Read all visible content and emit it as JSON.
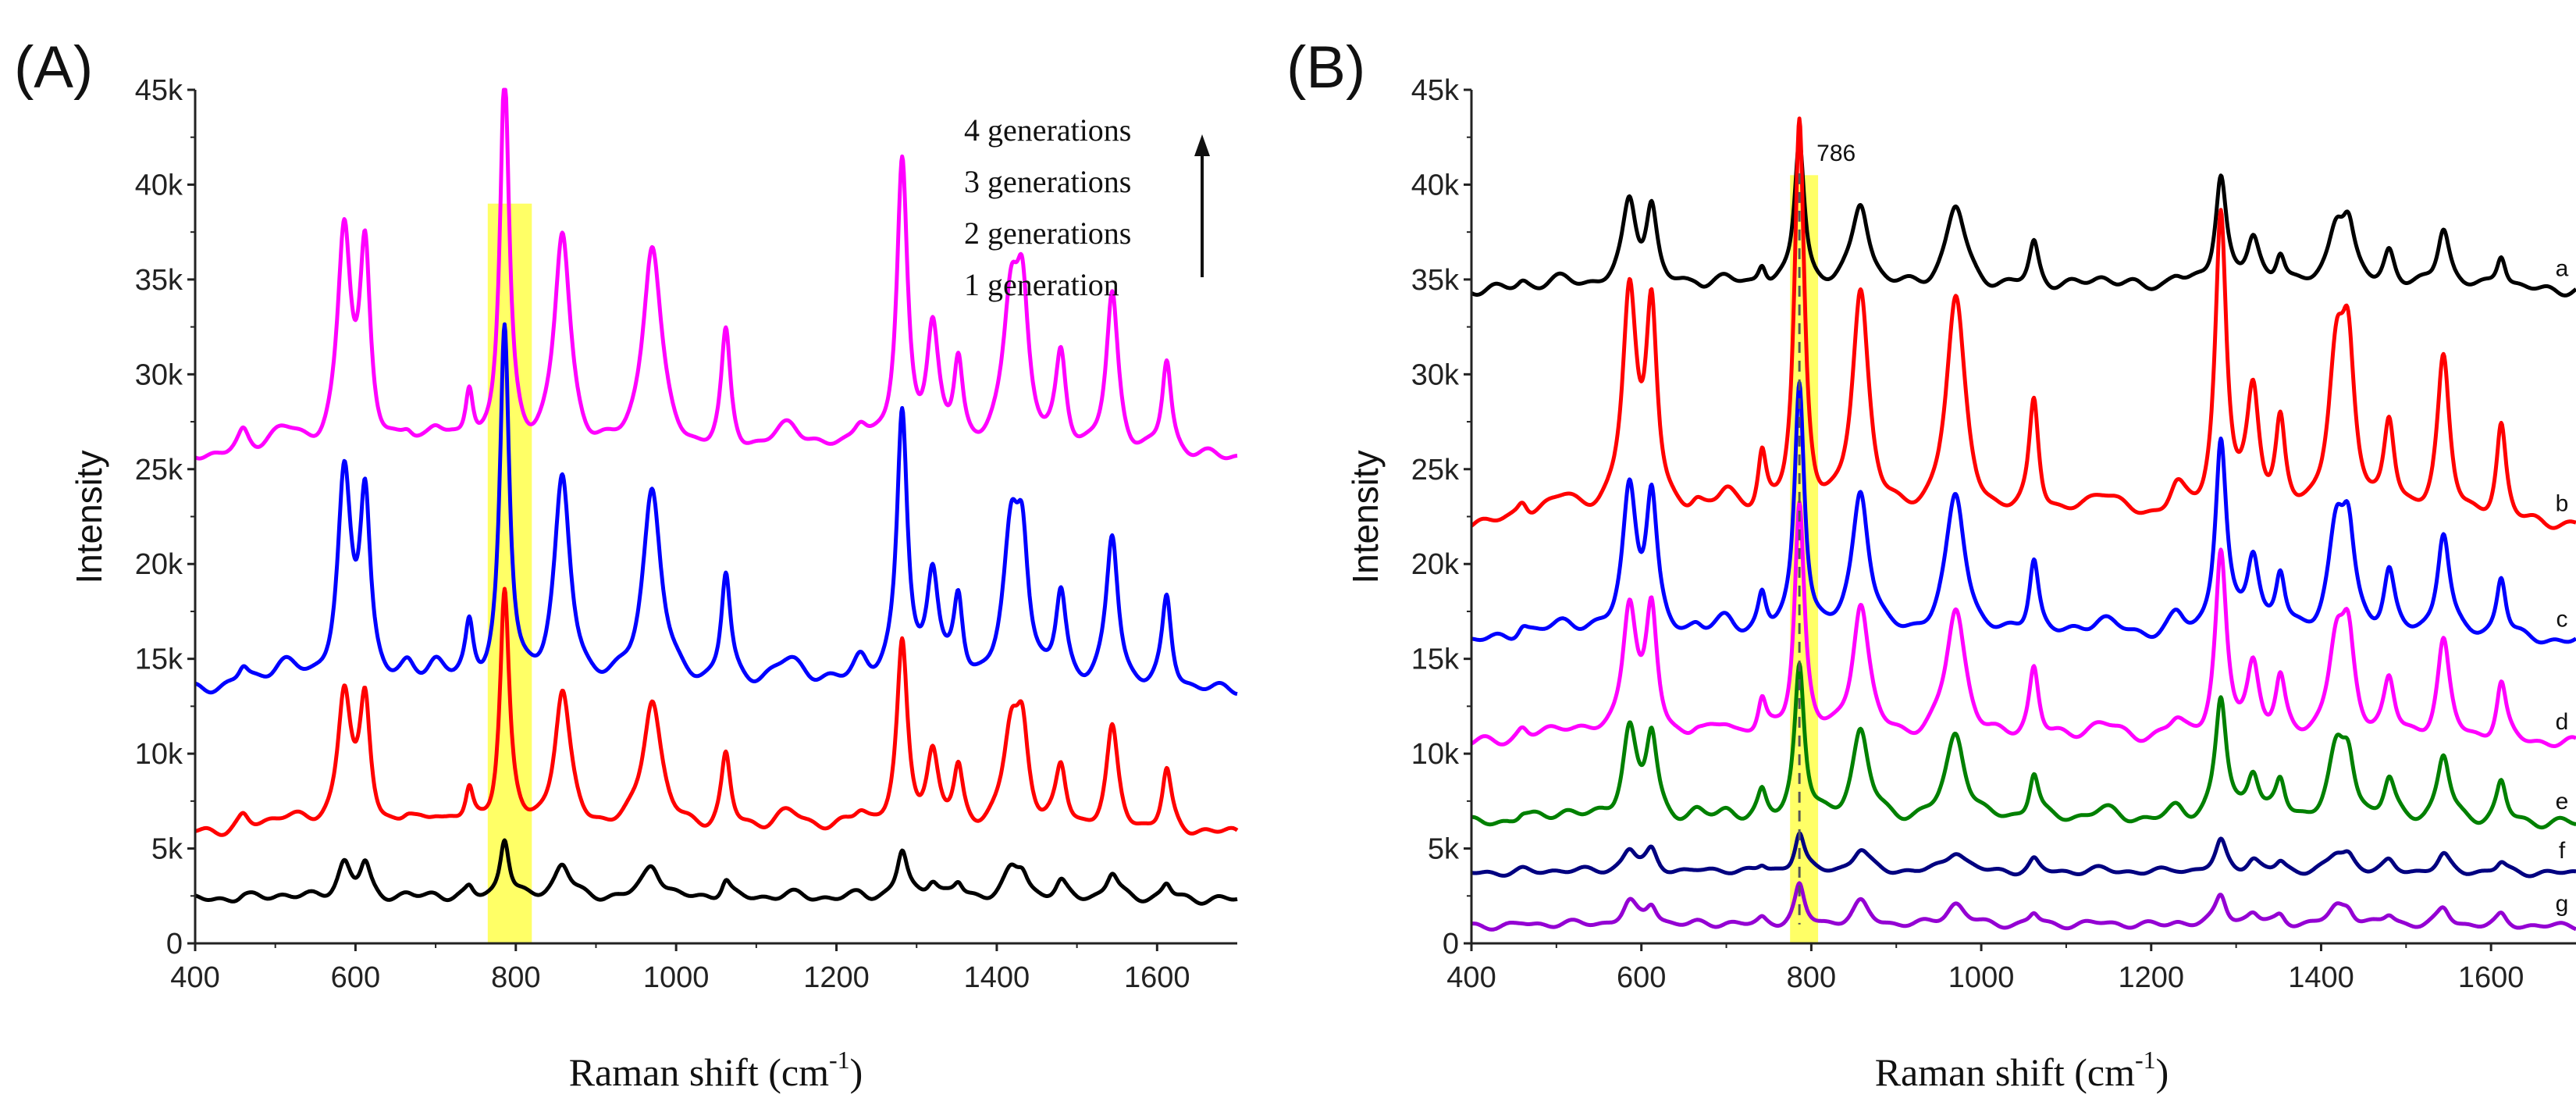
{
  "chart_data": [
    {
      "type": "line",
      "panel_label": "(A)",
      "title": "",
      "xlabel": "Raman shift (cm",
      "xlabel_sup": "-1",
      "xlabel_end": ")",
      "ylabel": "Intensity",
      "xlim": [
        400,
        1700
      ],
      "ylim": [
        0,
        45000
      ],
      "xticks": [
        400,
        600,
        800,
        1000,
        1200,
        1400,
        1600
      ],
      "yticks": [
        0,
        5000,
        10000,
        15000,
        20000,
        25000,
        30000,
        35000,
        40000,
        45000
      ],
      "ytick_labels": [
        "0",
        "5k",
        "10k",
        "15k",
        "20k",
        "25k",
        "30k",
        "35k",
        "40k",
        "45k"
      ],
      "highlight": {
        "x_from": 765,
        "x_to": 820,
        "y_to": 39000,
        "color": "#ffff66"
      },
      "legend": [
        "4 generations",
        "3 generations",
        "2 generations",
        "1 generation"
      ],
      "legend_arrow": true,
      "series": [
        {
          "name": "1 generation",
          "color": "#000000",
          "baseline": 2300,
          "scale": 0.062,
          "noise": 250
        },
        {
          "name": "2 generations",
          "color": "#ff0000",
          "baseline": 5800,
          "scale": 0.24,
          "noise": 300
        },
        {
          "name": "3 generations",
          "color": "#0000ff",
          "baseline": 13300,
          "scale": 0.36,
          "noise": 300
        },
        {
          "name": "4 generations",
          "color": "#ff00ff",
          "baseline": 25600,
          "scale": 0.38,
          "noise": 300
        }
      ]
    },
    {
      "type": "line",
      "panel_label": "(B)",
      "title": "",
      "xlabel": "Raman shift (cm",
      "xlabel_sup": "-1",
      "xlabel_end": ")",
      "ylabel": "Intensity",
      "xlim": [
        400,
        1700
      ],
      "ylim": [
        0,
        45000
      ],
      "xticks": [
        400,
        600,
        800,
        1000,
        1200,
        1400,
        1600
      ],
      "yticks": [
        0,
        5000,
        10000,
        15000,
        20000,
        25000,
        30000,
        35000,
        40000,
        45000
      ],
      "ytick_labels": [
        "0",
        "5k",
        "10k",
        "15k",
        "20k",
        "25k",
        "30k",
        "35k",
        "40k",
        "45k"
      ],
      "highlight": {
        "x_from": 775,
        "x_to": 808,
        "y_to": 40500,
        "color": "#ffff66"
      },
      "annotation": {
        "text": "786",
        "x": 786
      },
      "series": [
        {
          "name": "a",
          "color": "#000000",
          "baseline": 34400,
          "scale": 0.15,
          "noise": 300
        },
        {
          "name": "b",
          "color": "#ff0000",
          "baseline": 22000,
          "scale": 0.4,
          "noise": 300
        },
        {
          "name": "c",
          "color": "#0000ff",
          "baseline": 15900,
          "scale": 0.26,
          "noise": 300
        },
        {
          "name": "d",
          "color": "#ff00ff",
          "baseline": 10500,
          "scale": 0.24,
          "noise": 300
        },
        {
          "name": "e",
          "color": "#008000",
          "baseline": 6300,
          "scale": 0.16,
          "noise": 300
        },
        {
          "name": "f",
          "color": "#000080",
          "baseline": 3700,
          "scale": 0.04,
          "noise": 200
        },
        {
          "name": "g",
          "color": "#9400d3",
          "baseline": 900,
          "scale": 0.04,
          "noise": 200
        }
      ]
    }
  ],
  "spectrum_peaks": [
    [
      586,
      30000,
      10
    ],
    [
      612,
      27000,
      8
    ],
    [
      700,
      3500,
      15
    ],
    [
      742,
      8000,
      6
    ],
    [
      786,
      52000,
      7
    ],
    [
      858,
      30000,
      12
    ],
    [
      970,
      29000,
      14
    ],
    [
      1062,
      16000,
      7
    ],
    [
      1142,
      4000,
      25
    ],
    [
      1230,
      4000,
      12
    ],
    [
      1282,
      40000,
      8
    ],
    [
      1320,
      16000,
      9
    ],
    [
      1352,
      12000,
      7
    ],
    [
      1418,
      21000,
      12
    ],
    [
      1432,
      18000,
      9
    ],
    [
      1480,
      13000,
      8
    ],
    [
      1544,
      22000,
      9
    ],
    [
      1612,
      13000,
      7
    ]
  ],
  "spectrum_shoulders": [
    [
      460,
      2500,
      8
    ],
    [
      510,
      3500,
      25
    ],
    [
      665,
      2000,
      10
    ]
  ]
}
